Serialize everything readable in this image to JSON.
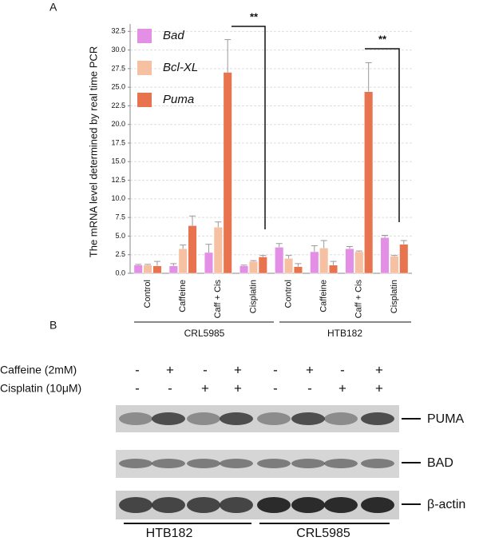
{
  "chart_data": {
    "type": "bar",
    "panel_label": "A",
    "y_label": "The mRNA level determined by real time PCR",
    "categories": [
      "Control",
      "Caffeine",
      "Caff + Cis",
      "Cisplatin",
      "Control",
      "Caffeine",
      "Caff + Cis",
      "Cisplatin"
    ],
    "groups": [
      "CRL5985",
      "HTB182"
    ],
    "series": [
      {
        "name": "Bad",
        "color": "#e48fe6",
        "values": [
          1.1,
          1.0,
          2.8,
          1.0,
          3.5,
          2.9,
          3.3,
          4.8
        ],
        "errors": [
          0.1,
          0.3,
          1.1,
          0.1,
          0.5,
          0.8,
          0.3,
          0.3
        ]
      },
      {
        "name": "Bcl-XL",
        "color": "#f6c0a2",
        "values": [
          1.1,
          3.3,
          6.2,
          1.6,
          2.0,
          3.4,
          2.9,
          2.3
        ],
        "errors": [
          0.1,
          0.5,
          0.7,
          0.1,
          0.4,
          1.0,
          0.1,
          0.1
        ]
      },
      {
        "name": "Puma",
        "color": "#e8744f",
        "values": [
          1.0,
          6.4,
          27.0,
          2.2,
          0.9,
          1.1,
          24.4,
          3.9
        ],
        "errors": [
          0.6,
          1.3,
          4.4,
          0.2,
          0.4,
          0.5,
          3.9,
          0.5
        ]
      }
    ],
    "annotations": [
      "**",
      "**"
    ],
    "ylim": [
      0,
      33.5
    ],
    "yticks": [
      {
        "value": 0,
        "label": "0.0"
      },
      2.5,
      {
        "value": 5,
        "label": "5.0"
      },
      7.5,
      {
        "value": 10,
        "label": "10.0"
      },
      12.5,
      {
        "value": 15,
        "label": "15.0"
      },
      17.5,
      {
        "value": 20,
        "label": "20.0"
      },
      22.5,
      {
        "value": 25,
        "label": "25.0"
      },
      27.5,
      {
        "value": 30,
        "label": "30.0"
      },
      32.5
    ],
    "grid": true
  },
  "blot": {
    "panel_label": "B",
    "treatments": [
      {
        "label": "Caffeine (2mM)",
        "signs": [
          "-",
          "+",
          "-",
          "+",
          "-",
          "+",
          "-",
          "+"
        ]
      },
      {
        "label": "Cisplatin (10μM)",
        "signs": [
          "-",
          "-",
          "+",
          "+",
          "-",
          "-",
          "+",
          "+"
        ]
      }
    ],
    "bands": [
      "PUMA",
      "BAD",
      "β-actin"
    ],
    "cell_lines": [
      "HTB182",
      "CRL5985"
    ]
  }
}
